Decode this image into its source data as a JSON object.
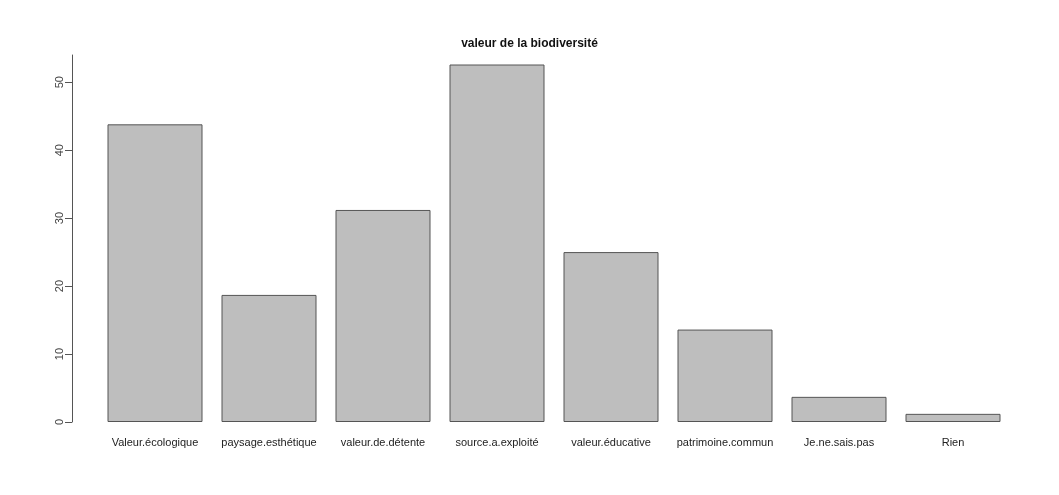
{
  "chart_data": {
    "type": "bar",
    "title": "valeur de la biodiversité",
    "categories": [
      "Valeur.écologique",
      "paysage.esthétique",
      "valeur.de.détente",
      "source.a.exploité",
      "valeur.éducative",
      "patrimoine.commun",
      "Je.ne.sais.pas",
      "Rien"
    ],
    "values": [
      43.8,
      18.7,
      31.2,
      52.6,
      25.0,
      13.6,
      3.7,
      1.2
    ],
    "color": "#bebebe",
    "ylim": [
      0,
      54
    ],
    "yticks": [
      0,
      10,
      20,
      30,
      40,
      50
    ],
    "grid": false
  }
}
